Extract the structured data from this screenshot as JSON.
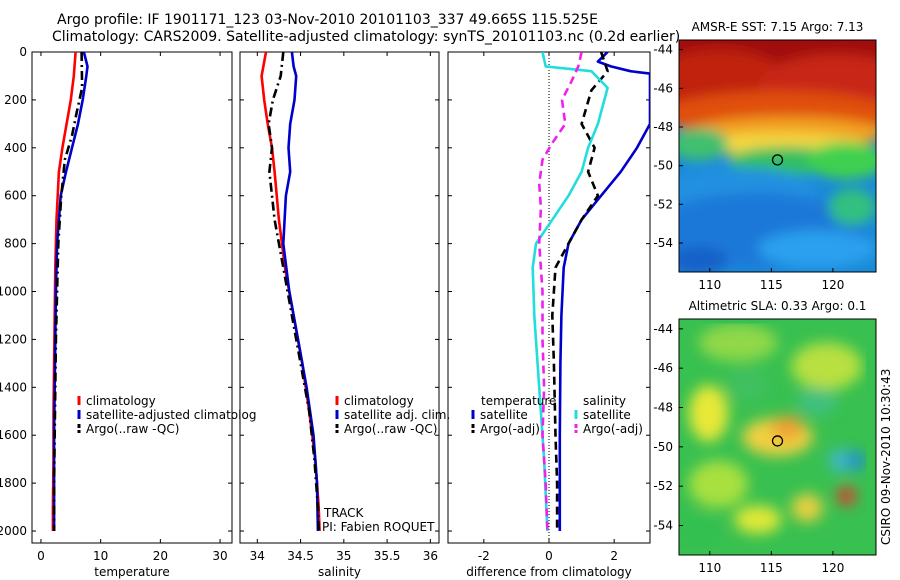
{
  "header": {
    "line1": "Argo profile: IF 1901171_123 03-Nov-2010 20101103_337 49.665S 115.525E",
    "line2": "Climatology: CARS2009. Satellite-adjusted climatology: synTS_20101103.nc (0.2d earlier)"
  },
  "stamp": "CSIRO 09-Nov-2010 10:30:43",
  "colors": {
    "red": "#ff0000",
    "blue": "#0000cc",
    "black": "#000000",
    "cyan": "#22dddd",
    "magenta": "#ee22ee"
  },
  "chart_data": [
    {
      "type": "line",
      "xlabel": "temperature",
      "xticks": [
        0,
        10,
        20,
        30
      ],
      "xlim": [
        -1.5,
        32
      ],
      "yticks": [
        0,
        200,
        400,
        600,
        800,
        1000,
        1200,
        1400,
        1600,
        1800,
        2000
      ],
      "ylim": [
        2050,
        0
      ],
      "grid": false,
      "legend_entries": [
        "climatology",
        "satellite-adjusted climatolog",
        "Argo(..raw -QC)"
      ],
      "series": [
        {
          "name": "climatology",
          "color": "red",
          "dash": "solid",
          "x": [
            5.8,
            5.5,
            5.0,
            4.3,
            3.6,
            3.0,
            2.6,
            2.4,
            2.3,
            2.2,
            2.1,
            2.1,
            2.0,
            2.0
          ],
          "y": [
            0,
            100,
            200,
            300,
            400,
            500,
            700,
            900,
            1100,
            1300,
            1500,
            1700,
            1900,
            2000
          ]
        },
        {
          "name": "satellite-adjusted climatolog",
          "color": "blue",
          "dash": "solid",
          "x": [
            7.2,
            7.8,
            7.6,
            7.0,
            6.2,
            5.2,
            4.2,
            3.3,
            2.7,
            2.5,
            2.4,
            2.3,
            2.2,
            2.2,
            2.2
          ],
          "y": [
            0,
            60,
            100,
            200,
            300,
            400,
            500,
            600,
            800,
            1000,
            1200,
            1400,
            1600,
            1800,
            2000
          ]
        },
        {
          "name": "Argo(..raw -QC)",
          "color": "black",
          "dash": "dashdot",
          "x": [
            6.8,
            6.9,
            6.0,
            5.2,
            4.0,
            3.4,
            2.9,
            2.7,
            2.5,
            2.4,
            2.3,
            2.2,
            2.2
          ],
          "y": [
            0,
            150,
            250,
            350,
            450,
            600,
            800,
            1000,
            1200,
            1400,
            1600,
            1800,
            2000
          ]
        }
      ]
    },
    {
      "type": "line",
      "xlabel": "salinity",
      "xticks": [
        34,
        34.5,
        35,
        35.5,
        36
      ],
      "xlim": [
        33.8,
        36.1
      ],
      "yticks": [
        0,
        200,
        400,
        600,
        800,
        1000,
        1200,
        1400,
        1600,
        1800,
        2000
      ],
      "ylim": [
        2050,
        0
      ],
      "grid": false,
      "legend_entries": [
        "climatology",
        "satellite adj. clim.",
        "Argo(..raw -QC)"
      ],
      "annotations": [
        "TRACK",
        "PI: Fabien ROQUET"
      ],
      "series": [
        {
          "name": "climatology",
          "color": "red",
          "dash": "solid",
          "x": [
            34.1,
            34.05,
            34.08,
            34.12,
            34.17,
            34.2,
            34.25,
            34.32,
            34.42,
            34.52,
            34.6,
            34.67,
            34.71,
            34.72
          ],
          "y": [
            0,
            100,
            200,
            300,
            400,
            500,
            700,
            900,
            1100,
            1300,
            1500,
            1700,
            1900,
            2000
          ]
        },
        {
          "name": "satellite adj. clim.",
          "color": "blue",
          "dash": "solid",
          "x": [
            34.4,
            34.42,
            34.45,
            34.43,
            34.38,
            34.36,
            34.38,
            34.33,
            34.3,
            34.37,
            34.47,
            34.57,
            34.65,
            34.69,
            34.7
          ],
          "y": [
            0,
            60,
            100,
            200,
            300,
            400,
            500,
            600,
            800,
            1000,
            1200,
            1400,
            1600,
            1800,
            2000
          ]
        },
        {
          "name": "Argo(..raw -QC)",
          "color": "black",
          "dash": "dashdot",
          "x": [
            34.3,
            34.27,
            34.18,
            34.13,
            34.17,
            34.14,
            34.2,
            34.3,
            34.4,
            34.5,
            34.6,
            34.66,
            34.7,
            34.71
          ],
          "y": [
            0,
            100,
            200,
            300,
            400,
            500,
            700,
            900,
            1100,
            1300,
            1500,
            1700,
            1900,
            2000
          ]
        }
      ]
    },
    {
      "type": "line",
      "xlabel": "difference from climatology",
      "xticks": [
        -2,
        0,
        2
      ],
      "xlim": [
        -3.1,
        3.1
      ],
      "yticks": [
        0,
        200,
        400,
        600,
        800,
        1000,
        1200,
        1400,
        1600,
        1800,
        2000
      ],
      "ylim": [
        2050,
        0
      ],
      "grid": false,
      "legend_groups": [
        "temperature",
        "salinity"
      ],
      "legend_entries": [
        "satellite",
        "Argo(-adj)",
        "satellite",
        "Argo(-adj)"
      ],
      "series": [
        {
          "name": "satellite",
          "group": "temperature",
          "color": "blue",
          "dash": "solid",
          "x": [
            1.8,
            1.5,
            1.9,
            2.5,
            3.1,
            3.1,
            2.7,
            2.2,
            1.6,
            1.0,
            0.6,
            0.45,
            0.38,
            0.35,
            0.33,
            0.33
          ],
          "y": [
            0,
            40,
            60,
            80,
            90,
            300,
            400,
            500,
            600,
            700,
            800,
            900,
            1100,
            1300,
            1600,
            2000
          ]
        },
        {
          "name": "Argo(-adj)",
          "group": "temperature",
          "color": "black",
          "dash": "dashed",
          "x": [
            1.6,
            1.8,
            1.3,
            1.0,
            1.4,
            1.2,
            1.5,
            1.0,
            0.6,
            0.2,
            0.1,
            0.15,
            0.2,
            0.25,
            0.25
          ],
          "y": [
            0,
            80,
            160,
            300,
            400,
            500,
            600,
            700,
            800,
            900,
            1100,
            1300,
            1600,
            1800,
            2000
          ]
        },
        {
          "name": "satellite",
          "group": "salinity",
          "color": "cyan",
          "dash": "solid",
          "x": [
            -0.2,
            -0.1,
            0.6,
            1.3,
            1.8,
            1.5,
            1.2,
            1.0,
            0.6,
            0.1,
            -0.4,
            -0.5,
            -0.45,
            -0.3,
            -0.15,
            -0.05
          ],
          "y": [
            0,
            60,
            70,
            80,
            150,
            300,
            400,
            500,
            600,
            700,
            800,
            900,
            1100,
            1400,
            1700,
            2000
          ]
        },
        {
          "name": "Argo(-adj)",
          "group": "salinity",
          "color": "magenta",
          "dash": "dashed",
          "x": [
            1.0,
            0.9,
            0.7,
            0.4,
            0.5,
            0.1,
            -0.2,
            -0.3,
            -0.25,
            -0.3,
            -0.2,
            -0.2,
            -0.15,
            -0.2,
            -0.1,
            -0.05
          ],
          "y": [
            0,
            60,
            120,
            200,
            300,
            380,
            450,
            550,
            650,
            800,
            1000,
            1200,
            1400,
            1600,
            1800,
            2000
          ]
        }
      ]
    },
    {
      "type": "heatmap",
      "title": "AMSR-E SST: 7.15 Argo: 7.13",
      "xticks": [
        110,
        115,
        120
      ],
      "yticks": [
        -44,
        -46,
        -48,
        -50,
        -52,
        -54
      ],
      "xlim": [
        107.5,
        123.5
      ],
      "ylim": [
        -55.5,
        -43.5
      ],
      "marker": {
        "x": 115.5,
        "y": -49.7
      }
    },
    {
      "type": "heatmap",
      "title": "Altimetric SLA: 0.33 Argo: 0.1",
      "xticks": [
        110,
        115,
        120
      ],
      "yticks": [
        -44,
        -46,
        -48,
        -50,
        -52,
        -54
      ],
      "xlim": [
        107.5,
        123.5
      ],
      "ylim": [
        -55.5,
        -43.5
      ],
      "marker": {
        "x": 115.5,
        "y": -49.7
      }
    }
  ]
}
